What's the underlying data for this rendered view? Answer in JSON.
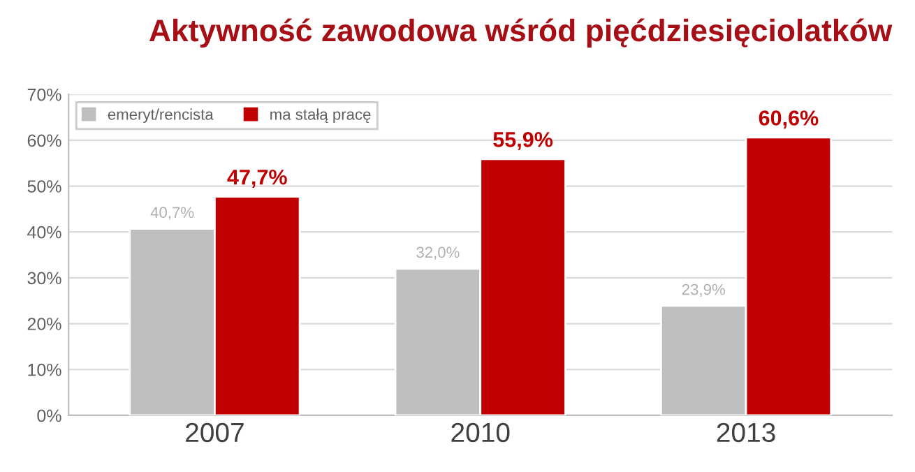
{
  "chart_data": {
    "type": "bar",
    "title": "Aktywność zawodowa wśród pięćdziesięciolatków",
    "categories": [
      "2007",
      "2010",
      "2013"
    ],
    "series": [
      {
        "name": "emeryt/rencista",
        "color": "#bfbfbf",
        "values": [
          40.7,
          32.0,
          23.9
        ],
        "value_labels": [
          "40,7%",
          "32,0%",
          "23,9%"
        ]
      },
      {
        "name": "ma stałą pracę",
        "color": "#c00000",
        "values": [
          47.7,
          55.9,
          60.6
        ],
        "value_labels": [
          "47,7%",
          "55,9%",
          "60,6%"
        ]
      }
    ],
    "ylim": [
      0,
      70
    ],
    "yticks": [
      {
        "value": 0,
        "label": "0%"
      },
      {
        "value": 10,
        "label": "10%"
      },
      {
        "value": 20,
        "label": "20%"
      },
      {
        "value": 30,
        "label": "30%"
      },
      {
        "value": 40,
        "label": "40%"
      },
      {
        "value": 50,
        "label": "50%"
      },
      {
        "value": 60,
        "label": "60%"
      },
      {
        "value": 70,
        "label": "70%"
      }
    ],
    "grid": "y",
    "legend": "top left"
  }
}
